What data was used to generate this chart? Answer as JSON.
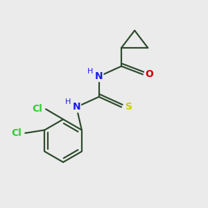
{
  "bg_color": "#ebebeb",
  "bond_color": "#2d4a2d",
  "bond_width": 1.6,
  "atom_colors": {
    "N": "#1a1aee",
    "O": "#cc0000",
    "S": "#cccc00",
    "Cl": "#33cc33",
    "C": "#2d4a2d",
    "H": "#1a1aee"
  },
  "font_size_atoms": 10,
  "font_size_h": 8,
  "xlim": [
    0,
    10
  ],
  "ylim": [
    0,
    10
  ]
}
